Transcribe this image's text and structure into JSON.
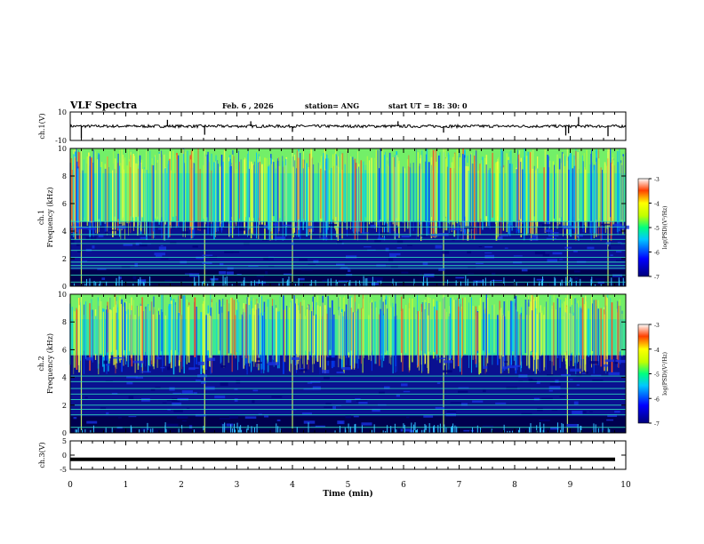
{
  "header": {
    "title": "VLF Spectra",
    "date": "Feb. 6  , 2026",
    "station": "station= ANG",
    "start_ut": "start  UT  =   18: 30: 0"
  },
  "chart_data": [
    {
      "type": "line",
      "panel": "ch1-waveform",
      "ylabel": "ch.1(V)",
      "ylim": [
        -10,
        10
      ],
      "yticks": [
        "10",
        "-10"
      ],
      "baseline": 0,
      "noise_amplitude": 1.0,
      "spikes": [
        {
          "t": 0.2,
          "v": -8.5
        },
        {
          "t": 1.75,
          "v": 4.5
        },
        {
          "t": 2.42,
          "v": -6.0
        },
        {
          "t": 3.25,
          "v": 3.5
        },
        {
          "t": 4.0,
          "v": -4.0
        },
        {
          "t": 5.9,
          "v": 3.5
        },
        {
          "t": 6.72,
          "v": -4.5
        },
        {
          "t": 8.92,
          "v": -6.5
        },
        {
          "t": 8.97,
          "v": -5.0
        },
        {
          "t": 9.15,
          "v": 6.5
        },
        {
          "t": 9.68,
          "v": -7.0
        }
      ]
    },
    {
      "type": "heatmap",
      "panel": "ch1-spectrogram",
      "ylabel": "ch.1",
      "ylabel2": "Frequency  (kHz)",
      "ylim": [
        0,
        10
      ],
      "yticks": [
        "0",
        "2",
        "4",
        "6",
        "8",
        "10"
      ],
      "boundary_khz": 4.7,
      "lines_khz": [
        0.3,
        0.8,
        1.3,
        1.5,
        1.75,
        2.1,
        2.6,
        3.1,
        3.4,
        3.75,
        4.3,
        4.7
      ],
      "colorbar": {
        "label": "log(PSD)(V²/Hz)",
        "range": [
          -7,
          -3
        ],
        "ticks": [
          "-3",
          "-4",
          "-5",
          "-6",
          "-7"
        ]
      }
    },
    {
      "type": "heatmap",
      "panel": "ch2-spectrogram",
      "ylabel": "ch.2",
      "ylabel2": "Frequency  (kHz)",
      "ylim": [
        0,
        10
      ],
      "yticks": [
        "0",
        "2",
        "4",
        "6",
        "8",
        "10"
      ],
      "boundary_khz": 5.6,
      "lines_khz": [
        0.4,
        1.3,
        1.7,
        2.0,
        2.4,
        2.8,
        3.2,
        3.7,
        4.1
      ],
      "colorbar": {
        "label": "log(PSD)(V²/Hz)",
        "range": [
          -7,
          -3
        ],
        "ticks": [
          "-3",
          "-4",
          "-5",
          "-6",
          "-7"
        ]
      }
    },
    {
      "type": "line",
      "panel": "ch3-waveform",
      "ylabel": "ch.3(V)",
      "ylim": [
        -5,
        5
      ],
      "yticks": [
        "5",
        "0",
        "-5"
      ],
      "baseline": -1.5
    }
  ],
  "xaxis": {
    "label": "Time  (min)",
    "range": [
      0,
      10
    ],
    "ticks": [
      "0",
      "1",
      "2",
      "3",
      "4",
      "5",
      "6",
      "7",
      "8",
      "9",
      "10"
    ]
  }
}
